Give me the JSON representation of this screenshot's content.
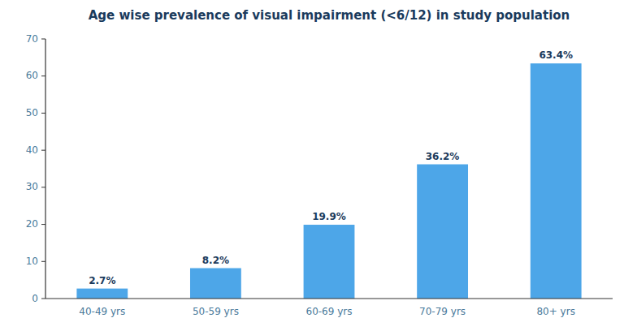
{
  "chart_data": {
    "type": "bar",
    "title": "Age wise prevalence of visual impairment (<6/12) in study population",
    "categories": [
      "40-49 yrs",
      "50-59 yrs",
      "60-69 yrs",
      "70-79 yrs",
      "80+ yrs"
    ],
    "values": [
      2.7,
      8.2,
      19.9,
      36.2,
      63.4
    ],
    "value_labels": [
      "2.7%",
      "8.2%",
      "19.9%",
      "36.2%",
      "63.4%"
    ],
    "data_labels": true,
    "color": "#4da6e8",
    "ylim": [
      0,
      70
    ],
    "yticks": [
      0,
      10,
      20,
      30,
      40,
      50,
      60,
      70
    ],
    "grid": false
  }
}
